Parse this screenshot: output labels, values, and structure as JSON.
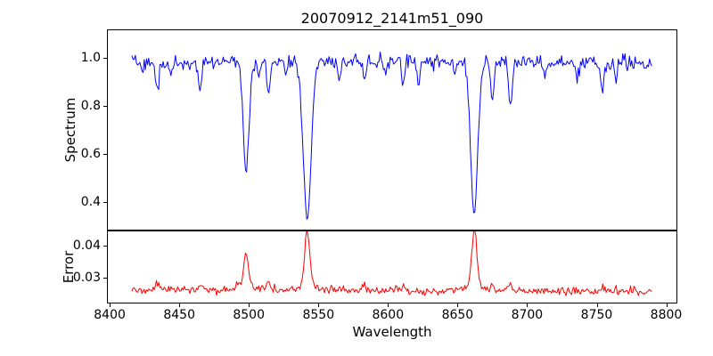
{
  "chart_data": {
    "type": "line",
    "title": "20070912_2141m51_090",
    "xlabel": "Wavelength",
    "xlim": [
      8398,
      8808
    ],
    "xticks": [
      8400,
      8450,
      8500,
      8550,
      8600,
      8650,
      8700,
      8750,
      8800
    ],
    "xtick_labels": [
      "8400",
      "8450",
      "8500",
      "8550",
      "8600",
      "8650",
      "8700",
      "8750",
      "8800"
    ],
    "x_range_data": [
      8416,
      8790
    ],
    "sample_step": 0.8,
    "grid": false,
    "legend": "none",
    "subplots": [
      {
        "name": "spectrum",
        "ylabel": "Spectrum",
        "color": "#0000ff",
        "ylim": [
          0.28,
          1.12
        ],
        "yticks": [
          0.4,
          0.6,
          0.8,
          1.0
        ],
        "ytick_labels": [
          "0.4",
          "0.6",
          "0.8",
          "1.0"
        ],
        "continuum": 0.978,
        "continuum_bow": 0.008,
        "noise_sigma": 0.015,
        "seed": 20070912,
        "absorption_lines": [
          {
            "center": 8424,
            "min": 0.93,
            "width": 0.9
          },
          {
            "center": 8434,
            "min": 0.87,
            "width": 1.1
          },
          {
            "center": 8444,
            "min": 0.92,
            "width": 0.9
          },
          {
            "center": 8465,
            "min": 0.87,
            "width": 1.2
          },
          {
            "center": 8498,
            "min": 0.52,
            "width": 2.0
          },
          {
            "center": 8507,
            "min": 0.91,
            "width": 0.9
          },
          {
            "center": 8514,
            "min": 0.85,
            "width": 1.1
          },
          {
            "center": 8527,
            "min": 0.92,
            "width": 0.9
          },
          {
            "center": 8542,
            "min": 0.315,
            "width": 2.8
          },
          {
            "center": 8565,
            "min": 0.9,
            "width": 0.9
          },
          {
            "center": 8583,
            "min": 0.9,
            "width": 1.0
          },
          {
            "center": 8598,
            "min": 0.93,
            "width": 0.9
          },
          {
            "center": 8611,
            "min": 0.88,
            "width": 1.1
          },
          {
            "center": 8622,
            "min": 0.89,
            "width": 1.0
          },
          {
            "center": 8648,
            "min": 0.92,
            "width": 0.9
          },
          {
            "center": 8662,
            "min": 0.34,
            "width": 2.5
          },
          {
            "center": 8675,
            "min": 0.82,
            "width": 1.1
          },
          {
            "center": 8688,
            "min": 0.8,
            "width": 1.3
          },
          {
            "center": 8713,
            "min": 0.92,
            "width": 0.9
          },
          {
            "center": 8736,
            "min": 0.91,
            "width": 0.9
          },
          {
            "center": 8754,
            "min": 0.86,
            "width": 1.1
          },
          {
            "center": 8764,
            "min": 0.91,
            "width": 0.9
          }
        ]
      },
      {
        "name": "error",
        "ylabel": "Error",
        "color": "#ff0000",
        "ylim": [
          0.0219,
          0.0447
        ],
        "yticks": [
          0.03,
          0.04
        ],
        "ytick_labels": [
          "0.03",
          "0.04"
        ],
        "baseline_start": 0.0263,
        "baseline_end": 0.0256,
        "noise_sigma": 0.0006,
        "seed": 2141,
        "peaks": [
          {
            "center": 8434,
            "peak": 0.0285,
            "width": 1.2
          },
          {
            "center": 8465,
            "peak": 0.0278,
            "width": 1.2
          },
          {
            "center": 8498,
            "peak": 0.0355,
            "width": 1.5
          },
          {
            "center": 8514,
            "peak": 0.0288,
            "width": 1.2
          },
          {
            "center": 8542,
            "peak": 0.0425,
            "width": 1.8
          },
          {
            "center": 8583,
            "peak": 0.0278,
            "width": 1.2
          },
          {
            "center": 8611,
            "peak": 0.0278,
            "width": 1.2
          },
          {
            "center": 8662,
            "peak": 0.0432,
            "width": 1.8
          },
          {
            "center": 8675,
            "peak": 0.0285,
            "width": 1.2
          },
          {
            "center": 8688,
            "peak": 0.0285,
            "width": 1.2
          },
          {
            "center": 8754,
            "peak": 0.0282,
            "width": 1.2
          }
        ],
        "big_peak_wing": {
          "threshold": 0.035,
          "height": 0.0022,
          "width": 5
        }
      }
    ]
  }
}
